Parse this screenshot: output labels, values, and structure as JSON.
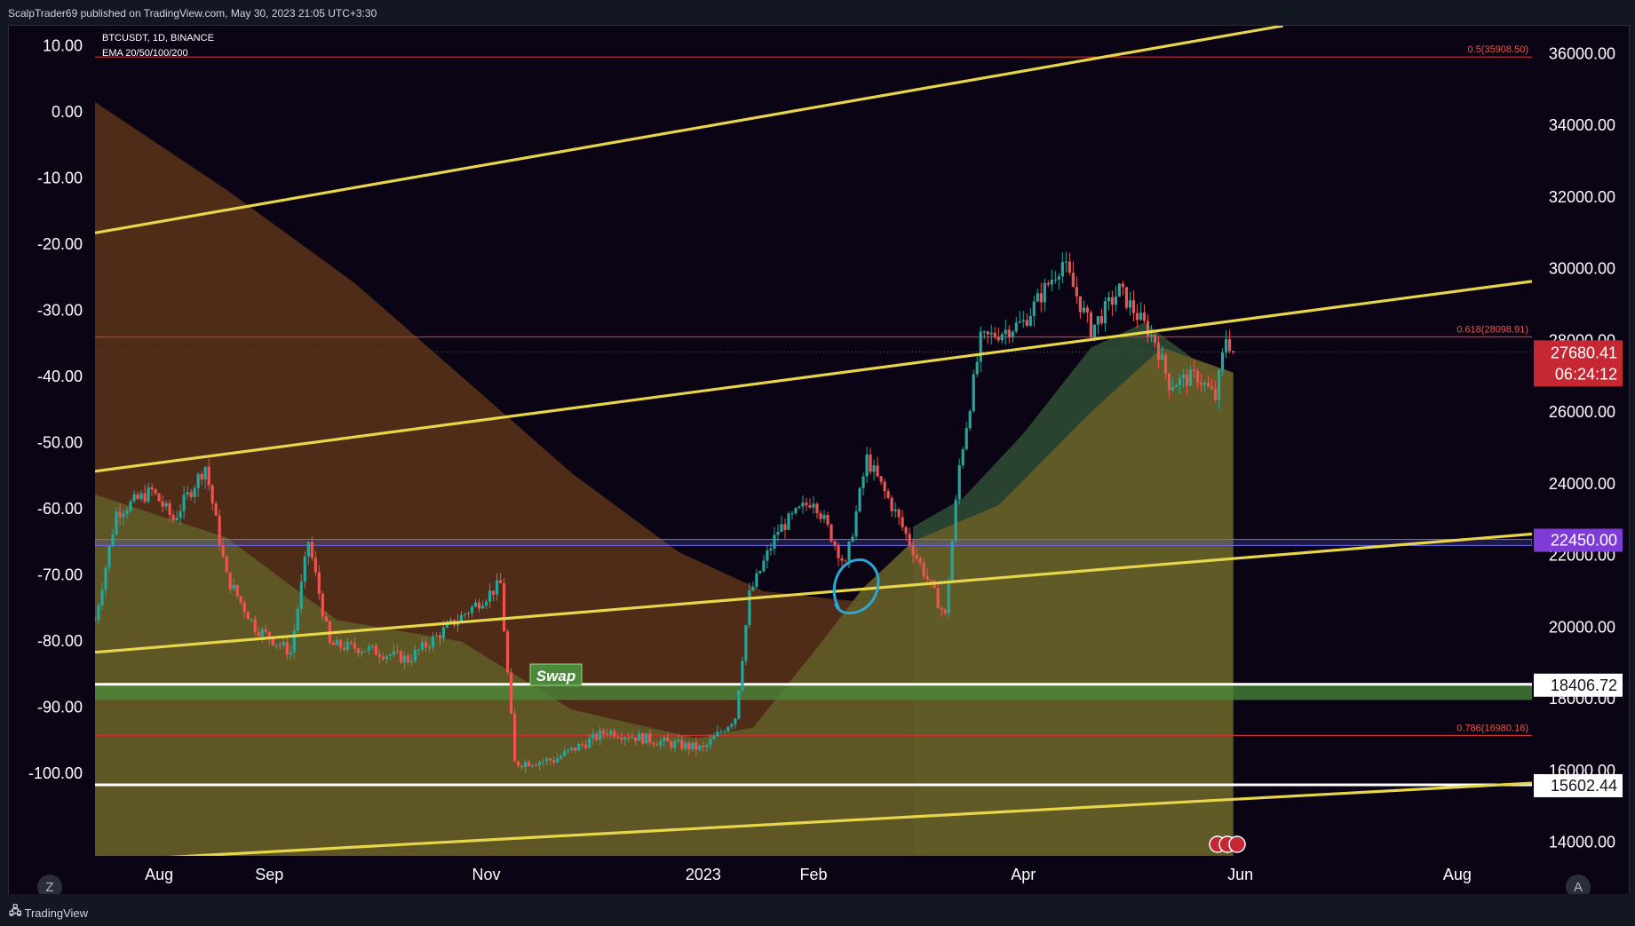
{
  "header": {
    "published_text": "ScalpTrader69 published on TradingView.com, May 30, 2023 21:05 UTC+3:30"
  },
  "footer": {
    "brand": "TradingView",
    "logo": "tradingview-logo-icon"
  },
  "buttons": {
    "left_scale": "Z",
    "right_scale": "A"
  },
  "colors": {
    "background": "#0b0414",
    "candle_up": "#26a69a",
    "candle_down": "#ef5350",
    "trendline": "#e8d64a",
    "fib_line": "#d1302b",
    "zone_blue": "#5b57d6",
    "zone_green": "#4b8a3a",
    "ema_fill_brown": "#5a3418",
    "ema_fill_olive": "#5f5a26",
    "ema_fill_green": "#2e4a33",
    "price_tag_red": "#c62833",
    "price_tag_purple": "#7e3bd6"
  },
  "chart_data": {
    "type": "candlestick",
    "legend": {
      "symbol": "BTCUSDT, 1D, BINANCE",
      "indicator": "EMA 20/50/100/200"
    },
    "x_axis": {
      "ticks": [
        "Aug",
        "Sep",
        "Nov",
        "2023",
        "Feb",
        "Apr",
        "Jun",
        "Aug"
      ],
      "range": [
        "2022-07-14",
        "2023-08-22"
      ]
    },
    "left_axis": {
      "ticks": [
        "10.00",
        "0.00",
        "-10.00",
        "-20.00",
        "-30.00",
        "-40.00",
        "-50.00",
        "-60.00",
        "-70.00",
        "-80.00",
        "-90.00",
        "-100.00"
      ],
      "range": [
        -112.5,
        13
      ]
    },
    "right_axis": {
      "ticks": [
        "36000.00",
        "34000.00",
        "32000.00",
        "30000.00",
        "28000.00",
        "26000.00",
        "24000.00",
        "22000.00",
        "20000.00",
        "18000.00",
        "16000.00",
        "14000.00"
      ],
      "range": [
        13620,
        36780
      ]
    },
    "price_labels": {
      "last_price": "27680.41",
      "countdown": "06:24:12",
      "zone_upper": "22450.00",
      "support_1": "18406.72",
      "support_2": "15602.44"
    },
    "fib_levels": [
      {
        "label": "0.5(35908.50)",
        "value": 35908.5
      },
      {
        "label": "0.618(28098.91)",
        "value": 28098.91
      },
      {
        "label": "0.786(16980.16)",
        "value": 16980.16
      }
    ],
    "horizontal_lines": [
      18406.72,
      15602.44
    ],
    "zones": [
      {
        "name": "blue-zone",
        "top": 22450,
        "bottom": 22280
      },
      {
        "name": "green-zone",
        "top": 18406.72,
        "bottom": 17970
      }
    ],
    "annotation_swap": "Swap",
    "trendlines": [
      {
        "start": [
          "2022-07-14",
          31000
        ],
        "end": [
          "2023-06-13",
          36780
        ]
      },
      {
        "start": [
          "2022-07-14",
          24350
        ],
        "end": [
          "2023-08-22",
          29650
        ]
      },
      {
        "start": [
          "2022-07-14",
          19300
        ],
        "end": [
          "2023-08-22",
          22600
        ]
      },
      {
        "start": [
          "2022-07-14",
          13470
        ],
        "end": [
          "2023-08-22",
          15650
        ]
      }
    ],
    "ema_200": [
      [
        "2022-07-14",
        34650
      ],
      [
        "2022-08-20",
        32200
      ],
      [
        "2022-09-25",
        29600
      ],
      [
        "2022-10-25",
        27000
      ],
      [
        "2022-11-25",
        24300
      ],
      [
        "2022-12-25",
        22100
      ],
      [
        "2023-01-18",
        21000
      ],
      [
        "2023-02-15",
        20700
      ],
      [
        "2023-03-15",
        21600
      ],
      [
        "2023-04-15",
        22400
      ],
      [
        "2023-05-10",
        23900
      ],
      [
        "2023-05-30",
        24900
      ]
    ],
    "ema_50": [
      [
        "2022-07-14",
        23700
      ],
      [
        "2022-08-20",
        22500
      ],
      [
        "2022-09-20",
        20200
      ],
      [
        "2022-10-25",
        19600
      ],
      [
        "2022-11-25",
        17700
      ],
      [
        "2022-12-30",
        16900
      ],
      [
        "2023-01-15",
        17200
      ],
      [
        "2023-02-01",
        19300
      ],
      [
        "2023-02-15",
        21100
      ],
      [
        "2023-03-01",
        22400
      ],
      [
        "2023-03-25",
        23400
      ],
      [
        "2023-04-20",
        26000
      ],
      [
        "2023-05-10",
        27800
      ],
      [
        "2023-05-30",
        27100
      ]
    ],
    "ema_20": [
      [
        "2023-03-01",
        22800
      ],
      [
        "2023-03-15",
        23600
      ],
      [
        "2023-04-01",
        25400
      ],
      [
        "2023-04-20",
        27800
      ],
      [
        "2023-05-05",
        28500
      ],
      [
        "2023-05-20",
        27400
      ],
      [
        "2023-05-30",
        27100
      ]
    ],
    "price_path": [
      [
        "2022-07-14",
        20200
      ],
      [
        "2022-07-20",
        23200
      ],
      [
        "2022-07-30",
        23800
      ],
      [
        "2022-08-05",
        23000
      ],
      [
        "2022-08-14",
        24500
      ],
      [
        "2022-08-20",
        21400
      ],
      [
        "2022-08-28",
        20000
      ],
      [
        "2022-09-07",
        19300
      ],
      [
        "2022-09-12",
        22400
      ],
      [
        "2022-09-18",
        19500
      ],
      [
        "2022-09-28",
        19400
      ],
      [
        "2022-10-10",
        19100
      ],
      [
        "2022-10-25",
        20300
      ],
      [
        "2022-11-05",
        21200
      ],
      [
        "2022-11-09",
        16200
      ],
      [
        "2022-11-20",
        16300
      ],
      [
        "2022-12-05",
        17100
      ],
      [
        "2022-12-20",
        16800
      ],
      [
        "2023-01-01",
        16600
      ],
      [
        "2023-01-10",
        17500
      ],
      [
        "2023-01-14",
        20900
      ],
      [
        "2023-01-22",
        22700
      ],
      [
        "2023-02-01",
        23600
      ],
      [
        "2023-02-10",
        21700
      ],
      [
        "2023-02-16",
        24700
      ],
      [
        "2023-02-24",
        23200
      ],
      [
        "2023-03-10",
        20300
      ],
      [
        "2023-03-14",
        24500
      ],
      [
        "2023-03-20",
        28000
      ],
      [
        "2023-04-01",
        28500
      ],
      [
        "2023-04-12",
        30200
      ],
      [
        "2023-04-20",
        28300
      ],
      [
        "2023-04-28",
        29400
      ],
      [
        "2023-05-08",
        28000
      ],
      [
        "2023-05-12",
        26800
      ],
      [
        "2023-05-20",
        27000
      ],
      [
        "2023-05-25",
        26400
      ],
      [
        "2023-05-28",
        28100
      ],
      [
        "2023-05-30",
        27680
      ]
    ]
  }
}
